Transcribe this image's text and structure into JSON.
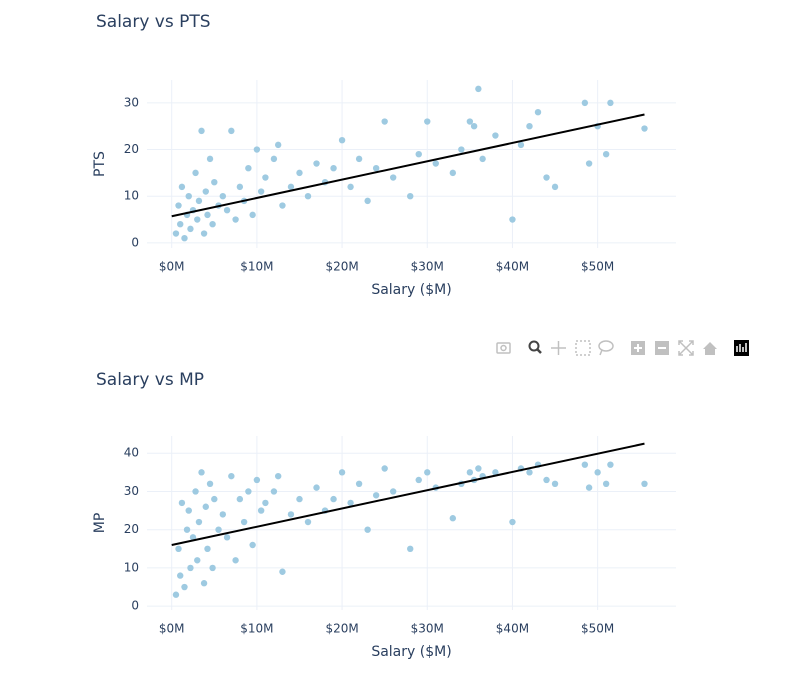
{
  "chart_data": [
    {
      "type": "scatter",
      "title": "Salary vs PTS",
      "x_label": "Salary ($M)",
      "y_label": "PTS",
      "xlim": [
        -2.9,
        59.2
      ],
      "ylim": [
        -1.1,
        34.9
      ],
      "xticks": [
        {
          "value": 0,
          "label": "$0M"
        },
        {
          "value": 10,
          "label": "$10M"
        },
        {
          "value": 20,
          "label": "$20M"
        },
        {
          "value": 30,
          "label": "$30M"
        },
        {
          "value": 40,
          "label": "$40M"
        },
        {
          "value": 50,
          "label": "$50M"
        }
      ],
      "yticks": [
        0,
        10,
        20,
        30
      ],
      "grid": true,
      "series": [
        {
          "mode": "markers",
          "color": "#9ecae1",
          "x": [
            0.5,
            0.8,
            1,
            1.2,
            1.5,
            1.8,
            2,
            2.2,
            2.5,
            2.8,
            3,
            3.2,
            3.5,
            3.8,
            4,
            4.2,
            4.5,
            4.8,
            5,
            5.5,
            6,
            6.5,
            7,
            7.5,
            8,
            8.5,
            9,
            9.5,
            10,
            10.5,
            11,
            12,
            12.5,
            13,
            14,
            15,
            16,
            17,
            18,
            19,
            20,
            21,
            22,
            23,
            24,
            25,
            26,
            28,
            29,
            30,
            31,
            33,
            34,
            35,
            35.5,
            36,
            36.5,
            38,
            40,
            41,
            42,
            43,
            44,
            45,
            48.5,
            49,
            50,
            51,
            51.5,
            55.5
          ],
          "values": [
            2,
            8,
            4,
            12,
            1,
            6,
            10,
            3,
            7,
            15,
            5,
            9,
            24,
            2,
            11,
            6,
            18,
            4,
            13,
            8,
            10,
            7,
            24,
            5,
            12,
            9,
            16,
            6,
            20,
            11,
            14,
            18,
            21,
            8,
            12,
            15,
            10,
            17,
            13,
            16,
            22,
            12,
            18,
            9,
            16,
            26,
            14,
            10,
            19,
            26,
            17,
            15,
            20,
            26,
            25,
            33,
            18,
            23,
            5,
            21,
            25,
            28,
            14,
            12,
            30,
            17,
            25,
            19,
            30,
            24.5
          ]
        },
        {
          "mode": "lines",
          "color": "#000000",
          "x": [
            0,
            55.5
          ],
          "values": [
            5.7,
            27.5
          ]
        }
      ]
    },
    {
      "type": "scatter",
      "title": "Salary vs MP",
      "x_label": "Salary ($M)",
      "y_label": "MP",
      "xlim": [
        -2.9,
        59.2
      ],
      "ylim": [
        -1,
        44.5
      ],
      "xticks": [
        {
          "value": 0,
          "label": "$0M"
        },
        {
          "value": 10,
          "label": "$10M"
        },
        {
          "value": 20,
          "label": "$20M"
        },
        {
          "value": 30,
          "label": "$30M"
        },
        {
          "value": 40,
          "label": "$40M"
        },
        {
          "value": 50,
          "label": "$50M"
        }
      ],
      "yticks": [
        0,
        10,
        20,
        30,
        40
      ],
      "grid": true,
      "series": [
        {
          "mode": "markers",
          "color": "#9ecae1",
          "x": [
            0.5,
            0.8,
            1,
            1.2,
            1.5,
            1.8,
            2,
            2.2,
            2.5,
            2.8,
            3,
            3.2,
            3.5,
            3.8,
            4,
            4.2,
            4.5,
            4.8,
            5,
            5.5,
            6,
            6.5,
            7,
            7.5,
            8,
            8.5,
            9,
            9.5,
            10,
            10.5,
            11,
            12,
            12.5,
            13,
            14,
            15,
            16,
            17,
            18,
            19,
            20,
            21,
            22,
            23,
            24,
            25,
            26,
            28,
            29,
            30,
            31,
            33,
            34,
            35,
            35.5,
            36,
            36.5,
            38,
            40,
            41,
            42,
            43,
            44,
            45,
            48.5,
            49,
            50,
            51,
            51.5,
            55.5
          ],
          "values": [
            3,
            15,
            8,
            27,
            5,
            20,
            25,
            10,
            18,
            30,
            12,
            22,
            35,
            6,
            26,
            15,
            32,
            10,
            28,
            20,
            24,
            18,
            34,
            12,
            28,
            22,
            30,
            16,
            33,
            25,
            27,
            30,
            34,
            9,
            24,
            28,
            22,
            31,
            25,
            28,
            35,
            27,
            32,
            20,
            29,
            36,
            30,
            15,
            33,
            35,
            31,
            23,
            32,
            35,
            33,
            36,
            34,
            35,
            22,
            36,
            35,
            37,
            33,
            32,
            37,
            31,
            35,
            32,
            37,
            32
          ]
        },
        {
          "mode": "lines",
          "color": "#000000",
          "x": [
            0,
            55.5
          ],
          "values": [
            16,
            42.5
          ]
        }
      ]
    }
  ]
}
